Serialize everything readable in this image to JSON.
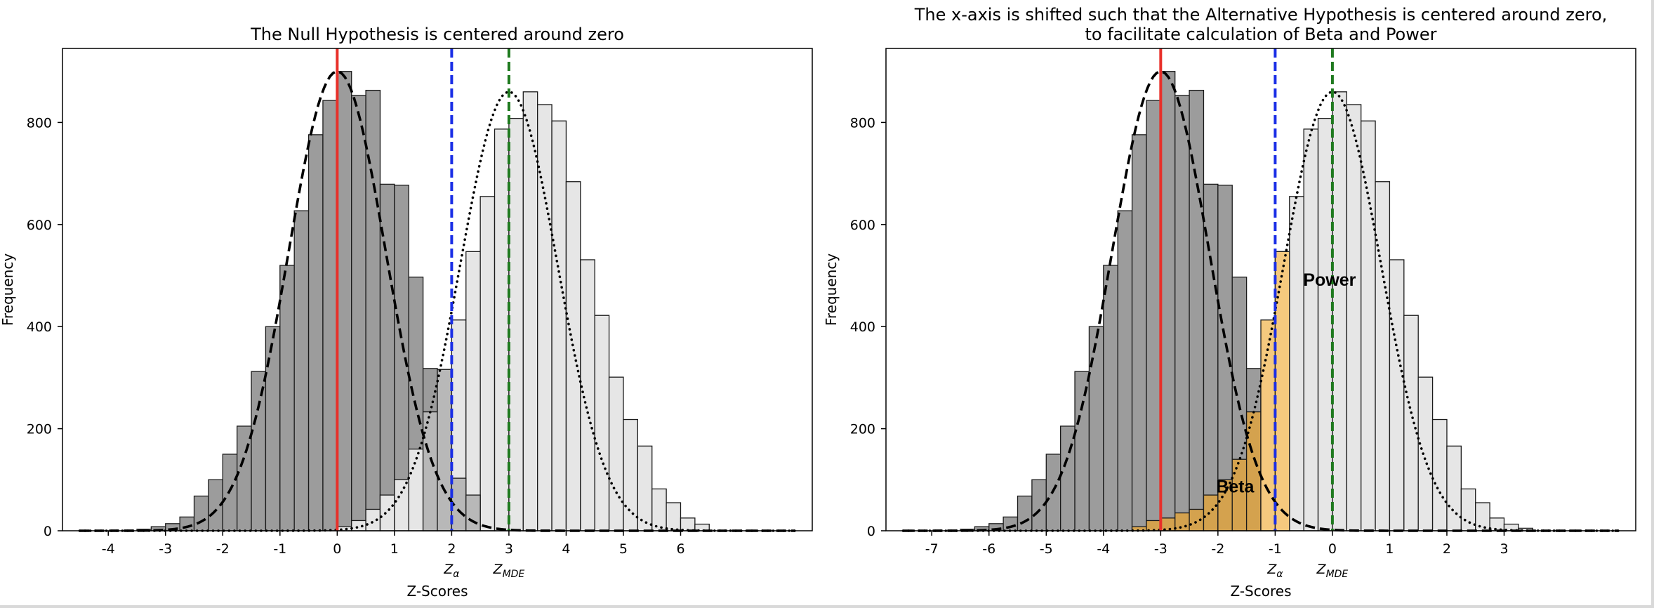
{
  "chart_data": [
    {
      "type": "bar",
      "title": "The Null Hypothesis is centered around zero",
      "subtitle": "",
      "xlabel": "Z-Scores",
      "ylabel": "Frequency",
      "xlim": [
        -4.8,
        8.3
      ],
      "ylim": [
        0,
        945
      ],
      "xticks": [
        -4,
        -3,
        -2,
        -1,
        0,
        1,
        2,
        3,
        4,
        5,
        6
      ],
      "xtick_labels": [
        "-4",
        "-3",
        "-2",
        "-1",
        "0",
        "1",
        "2",
        "3",
        "4",
        "5",
        "6"
      ],
      "yticks": [
        0,
        200,
        400,
        600,
        800
      ],
      "ytick_labels": [
        "0",
        "200",
        "400",
        "600",
        "800"
      ],
      "grid": false,
      "bin_width": 0.25,
      "series": [
        {
          "role": "null-distribution-histogram",
          "color": "#9c9c9c",
          "bin_starts": [
            -3.5,
            -3.25,
            -3.0,
            -2.75,
            -2.5,
            -2.25,
            -2.0,
            -1.75,
            -1.5,
            -1.25,
            -1.0,
            -0.75,
            -0.5,
            -0.25,
            0.0,
            0.25,
            0.5,
            0.75,
            1.0,
            1.25,
            1.5,
            1.75,
            2.0,
            2.25,
            2.5,
            2.75,
            3.0,
            3.25
          ],
          "values": [
            3,
            8,
            14,
            27,
            68,
            100,
            150,
            205,
            312,
            400,
            520,
            627,
            776,
            843,
            900,
            853,
            863,
            679,
            677,
            497,
            318,
            180,
            103,
            70,
            40,
            22,
            12,
            6
          ]
        },
        {
          "role": "alternative-distribution-histogram",
          "color": "#e6e6e6",
          "bin_starts": [
            0.0,
            0.25,
            0.5,
            0.75,
            1.0,
            1.25,
            1.5,
            1.75,
            2.0,
            2.25,
            2.5,
            2.75,
            3.0,
            3.25,
            3.5,
            3.75,
            4.0,
            4.25,
            4.5,
            4.75,
            5.0,
            5.25,
            5.5,
            5.75,
            6.0,
            6.25
          ],
          "values": [
            8,
            20,
            42,
            70,
            100,
            160,
            233,
            316,
            413,
            547,
            655,
            787,
            808,
            860,
            835,
            803,
            684,
            531,
            422,
            301,
            218,
            166,
            82,
            55,
            25,
            13
          ]
        },
        {
          "role": "overlap-histogram",
          "color": "#b8b8b8",
          "bin_starts": [
            1.5,
            1.75,
            2.0,
            2.25
          ],
          "values": [
            233,
            316,
            103,
            70
          ]
        }
      ],
      "curves": [
        {
          "role": "null-density-curve",
          "style": "dashed",
          "color": "#000000",
          "mean": 0,
          "sd": 0.85,
          "peak": 900
        },
        {
          "role": "alternative-density-curve",
          "style": "dotted",
          "color": "#000000",
          "mean": 3,
          "sd": 0.85,
          "peak": 860
        }
      ],
      "vlines": [
        {
          "x": 0,
          "color": "#e8302a",
          "style": "solid",
          "label": ""
        },
        {
          "x": 2,
          "color": "#1a2ee6",
          "style": "dashed",
          "label": "Z",
          "label_sub": "α"
        },
        {
          "x": 3,
          "color": "#1f7a1f",
          "style": "dashed",
          "label": "Z",
          "label_sub": "MDE"
        }
      ],
      "annotations": []
    },
    {
      "type": "bar",
      "title": "The x-axis is shifted such that the Alternative Hypothesis is centered around zero,",
      "subtitle": "to facilitate calculation of Beta and Power",
      "xlabel": "Z-Scores",
      "ylabel": "Frequency",
      "xlim": [
        -7.8,
        5.3
      ],
      "ylim": [
        0,
        945
      ],
      "xticks": [
        -7,
        -6,
        -5,
        -4,
        -3,
        -2,
        -1,
        0,
        1,
        2,
        3
      ],
      "xtick_labels": [
        "-7",
        "-6",
        "-5",
        "-4",
        "-3",
        "-2",
        "-1",
        "0",
        "1",
        "2",
        "3"
      ],
      "yticks": [
        0,
        200,
        400,
        600,
        800
      ],
      "ytick_labels": [
        "0",
        "200",
        "400",
        "600",
        "800"
      ],
      "grid": false,
      "bin_width": 0.25,
      "series": [
        {
          "role": "null-distribution-histogram",
          "color": "#9c9c9c",
          "bin_starts": [
            -6.5,
            -6.25,
            -6.0,
            -5.75,
            -5.5,
            -5.25,
            -5.0,
            -4.75,
            -4.5,
            -4.25,
            -4.0,
            -3.75,
            -3.5,
            -3.25,
            -3.0,
            -2.75,
            -2.5,
            -2.25,
            -2.0,
            -1.75,
            -1.5,
            -1.25
          ],
          "values": [
            3,
            8,
            14,
            27,
            68,
            100,
            150,
            205,
            312,
            400,
            520,
            627,
            776,
            843,
            900,
            853,
            863,
            679,
            677,
            497,
            318,
            180
          ]
        },
        {
          "role": "alternative-distribution-histogram",
          "color": "#e6e6e6",
          "bin_starts": [
            -1.0,
            -0.75,
            -0.5,
            -0.25,
            0.0,
            0.25,
            0.5,
            0.75,
            1.0,
            1.25,
            1.5,
            1.75,
            2.0,
            2.25,
            2.5,
            2.75,
            3.0,
            3.25
          ],
          "values": [
            547,
            655,
            787,
            808,
            860,
            835,
            803,
            684,
            531,
            422,
            301,
            218,
            166,
            82,
            55,
            25,
            13,
            5
          ]
        },
        {
          "role": "beta-region-histogram",
          "color": "#d4a24e",
          "bin_starts": [
            -3.5,
            -3.25,
            -3.0,
            -2.75,
            -2.5,
            -2.25,
            -2.0,
            -1.75,
            -1.5,
            -1.25
          ],
          "values": [
            8,
            20,
            25,
            35,
            42,
            70,
            100,
            140,
            233,
            316
          ]
        },
        {
          "role": "beta-region-light",
          "color": "#f5c97e",
          "bin_starts": [
            -1.5,
            -1.25,
            -1.0
          ],
          "values": [
            0,
            413,
            547
          ]
        }
      ],
      "curves": [
        {
          "role": "null-density-curve",
          "style": "dashed",
          "color": "#000000",
          "mean": -3,
          "sd": 0.85,
          "peak": 900
        },
        {
          "role": "alternative-density-curve",
          "style": "dotted",
          "color": "#000000",
          "mean": 0,
          "sd": 0.85,
          "peak": 860
        }
      ],
      "vlines": [
        {
          "x": -3,
          "color": "#e8302a",
          "style": "solid",
          "label": ""
        },
        {
          "x": -1,
          "color": "#1a2ee6",
          "style": "dashed",
          "label": "Z",
          "label_sub": "α"
        },
        {
          "x": 0,
          "color": "#1f7a1f",
          "style": "dashed",
          "label": "Z",
          "label_sub": "MDE"
        }
      ],
      "annotations": [
        {
          "text": "Power",
          "x": -0.05,
          "y": 480
        },
        {
          "text": "Beta",
          "x": -1.7,
          "y": 75
        }
      ]
    }
  ]
}
